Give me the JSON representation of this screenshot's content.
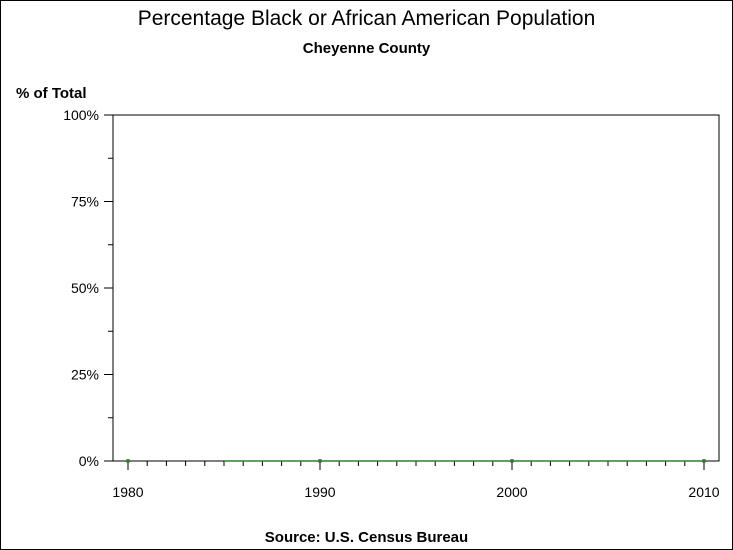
{
  "chart_data": {
    "type": "line",
    "title": "Percentage Black or African American Population",
    "subtitle": "Cheyenne County",
    "ylabel": "% of Total",
    "source": "Source: U.S. Census Bureau",
    "x": [
      1980,
      1990,
      2000,
      2010
    ],
    "series": [
      {
        "values": [
          0,
          0,
          0,
          0
        ]
      }
    ],
    "xlim": [
      1980,
      2010
    ],
    "ylim": [
      0,
      100
    ],
    "xticks": [
      "1980",
      "1990",
      "2000",
      "2010"
    ],
    "yticks": [
      "0%",
      "25%",
      "50%",
      "75%",
      "100%"
    ],
    "line_start_x": 1985,
    "grid": false,
    "colors": {
      "series": "#2e7d32",
      "axis": "#000000"
    }
  }
}
